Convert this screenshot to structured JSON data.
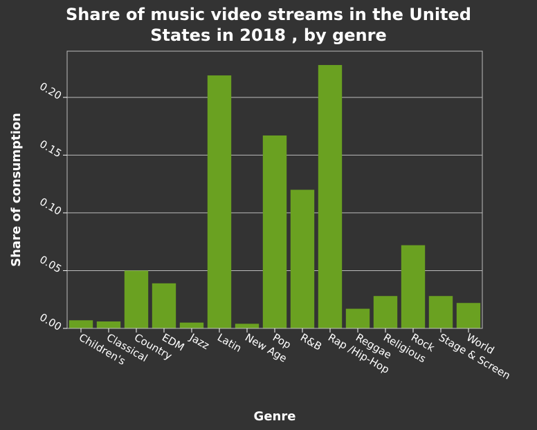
{
  "chart_data": {
    "type": "bar",
    "title_lines": [
      "Share of music video streams in the United",
      "States in 2018 , by genre"
    ],
    "xlabel": "Genre",
    "ylabel": "Share of consumption",
    "categories": [
      "Children's",
      "Classical",
      "Country",
      "EDM",
      "Jazz",
      "Latin",
      "New Age",
      "Pop",
      "R&B",
      "Rap /Hip-Hop",
      "Reggae",
      "Religious",
      "Rock",
      "Stage & Screen",
      "World"
    ],
    "values": [
      0.007,
      0.006,
      0.05,
      0.039,
      0.005,
      0.219,
      0.004,
      0.167,
      0.12,
      0.228,
      0.017,
      0.028,
      0.072,
      0.028,
      0.022
    ],
    "ylim": [
      0,
      0.24
    ],
    "yticks": [
      0.0,
      0.05,
      0.1,
      0.15,
      0.2
    ],
    "ytick_labels": [
      "0.00",
      "0.05",
      "0.10",
      "0.15",
      "0.20"
    ],
    "grid": true,
    "legend": "none",
    "colors": {
      "bar": "#6aa121",
      "background": "#333333",
      "grid": "#bdbdbd",
      "text": "#ffffff"
    }
  }
}
